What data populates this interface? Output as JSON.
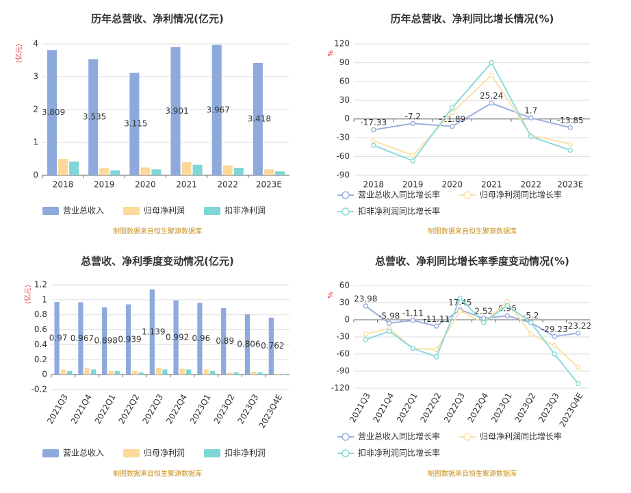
{
  "chart_data": [
    {
      "type": "bar",
      "title": "历年总营收、净利情况(亿元)",
      "y_label": "(亿元)",
      "source": "制图数据来自恒生聚源数据库",
      "categories": [
        "2018",
        "2019",
        "2020",
        "2021",
        "2022",
        "2023E"
      ],
      "series": [
        {
          "name": "营业总收入",
          "color": "#8eaadc",
          "show_labels": true,
          "values": [
            3.809,
            3.535,
            3.115,
            3.901,
            3.967,
            3.418
          ]
        },
        {
          "name": "归母净利润",
          "color": "#fdd89a",
          "values": [
            0.5,
            0.22,
            0.24,
            0.4,
            0.3,
            0.18
          ]
        },
        {
          "name": "扣非净利润",
          "color": "#7fd6d6",
          "values": [
            0.42,
            0.15,
            0.18,
            0.32,
            0.23,
            0.12
          ]
        }
      ],
      "ylim": [
        0,
        4
      ],
      "yticks": [
        0,
        1,
        2,
        3,
        4
      ],
      "grid": true
    },
    {
      "type": "line",
      "title": "历年总营收、净利同比增长情况(%)",
      "y_label": "%",
      "source": "制图数据来自恒生聚源数据库",
      "categories": [
        "2018",
        "2019",
        "2020",
        "2021",
        "2022",
        "2023E"
      ],
      "series": [
        {
          "name": "营业总收入同比增长率",
          "color": "#9ab0dd",
          "show_labels": true,
          "values": [
            -17.33,
            -7.2,
            -11.89,
            25.24,
            1.7,
            -13.85
          ]
        },
        {
          "name": "归母净利润同比增长率",
          "color": "#fde0a8",
          "values": [
            -35,
            -58,
            10,
            70,
            -26,
            -40
          ]
        },
        {
          "name": "扣非净利润同比增长率",
          "color": "#8adada",
          "values": [
            -42,
            -67,
            18,
            90,
            -28,
            -50
          ]
        }
      ],
      "ylim": [
        -90,
        120
      ],
      "yticks": [
        -90,
        -60,
        -30,
        0,
        30,
        60,
        90,
        120
      ],
      "grid": true
    },
    {
      "type": "bar",
      "title": "总营收、净利季度变动情况(亿元)",
      "y_label": "(亿元)",
      "source": "制图数据来自恒生聚源数据库",
      "categories": [
        "2021Q3",
        "2021Q4",
        "2022Q1",
        "2022Q2",
        "2022Q3",
        "2022Q4",
        "2023Q1",
        "2023Q2",
        "2023Q3",
        "2023Q4E"
      ],
      "series": [
        {
          "name": "营业总收入",
          "color": "#8eaadc",
          "show_labels": true,
          "values": [
            0.97,
            0.967,
            0.898,
            0.939,
            1.139,
            0.992,
            0.96,
            0.89,
            0.806,
            0.762
          ]
        },
        {
          "name": "归母净利润",
          "color": "#fdd89a",
          "values": [
            0.07,
            0.09,
            0.05,
            0.05,
            0.09,
            0.08,
            0.07,
            0.03,
            0.04,
            0.01
          ]
        },
        {
          "name": "扣非净利润",
          "color": "#7fd6d6",
          "values": [
            0.05,
            0.07,
            0.05,
            0.03,
            0.07,
            0.07,
            0.05,
            0.03,
            0.03,
            0.005
          ]
        }
      ],
      "ylim": [
        -0.2,
        1.2
      ],
      "yticks": [
        -0.2,
        0,
        0.2,
        0.4,
        0.6,
        0.8,
        1,
        1.2
      ],
      "grid": true
    },
    {
      "type": "line",
      "title": "总营收、净利同比增长率季度变动情况(%)",
      "y_label": "%",
      "source": "制图数据来自恒生聚源数据库",
      "categories": [
        "2021Q3",
        "2021Q4",
        "2022Q1",
        "2022Q2",
        "2022Q3",
        "2022Q4",
        "2023Q1",
        "2023Q2",
        "2023Q3",
        "2023Q4E"
      ],
      "series": [
        {
          "name": "营业总收入同比增长率",
          "color": "#9ab0dd",
          "show_labels": true,
          "values": [
            23.98,
            -5.98,
            -1.11,
            -11.11,
            17.45,
            2.52,
            6.96,
            -5.2,
            -29.23,
            -23.22
          ]
        },
        {
          "name": "归母净利润同比增长率",
          "color": "#fde0a8",
          "values": [
            -25,
            -15,
            -50,
            -52,
            15,
            -5,
            32,
            -25,
            -45,
            -83
          ]
        },
        {
          "name": "扣非净利润同比增长率",
          "color": "#8adada",
          "values": [
            -35,
            -20,
            -50,
            -65,
            38,
            -5,
            25,
            -5,
            -60,
            -112
          ]
        }
      ],
      "ylim": [
        -120,
        60
      ],
      "yticks": [
        -120,
        -90,
        -60,
        -30,
        0,
        30,
        60
      ],
      "grid": true
    }
  ]
}
